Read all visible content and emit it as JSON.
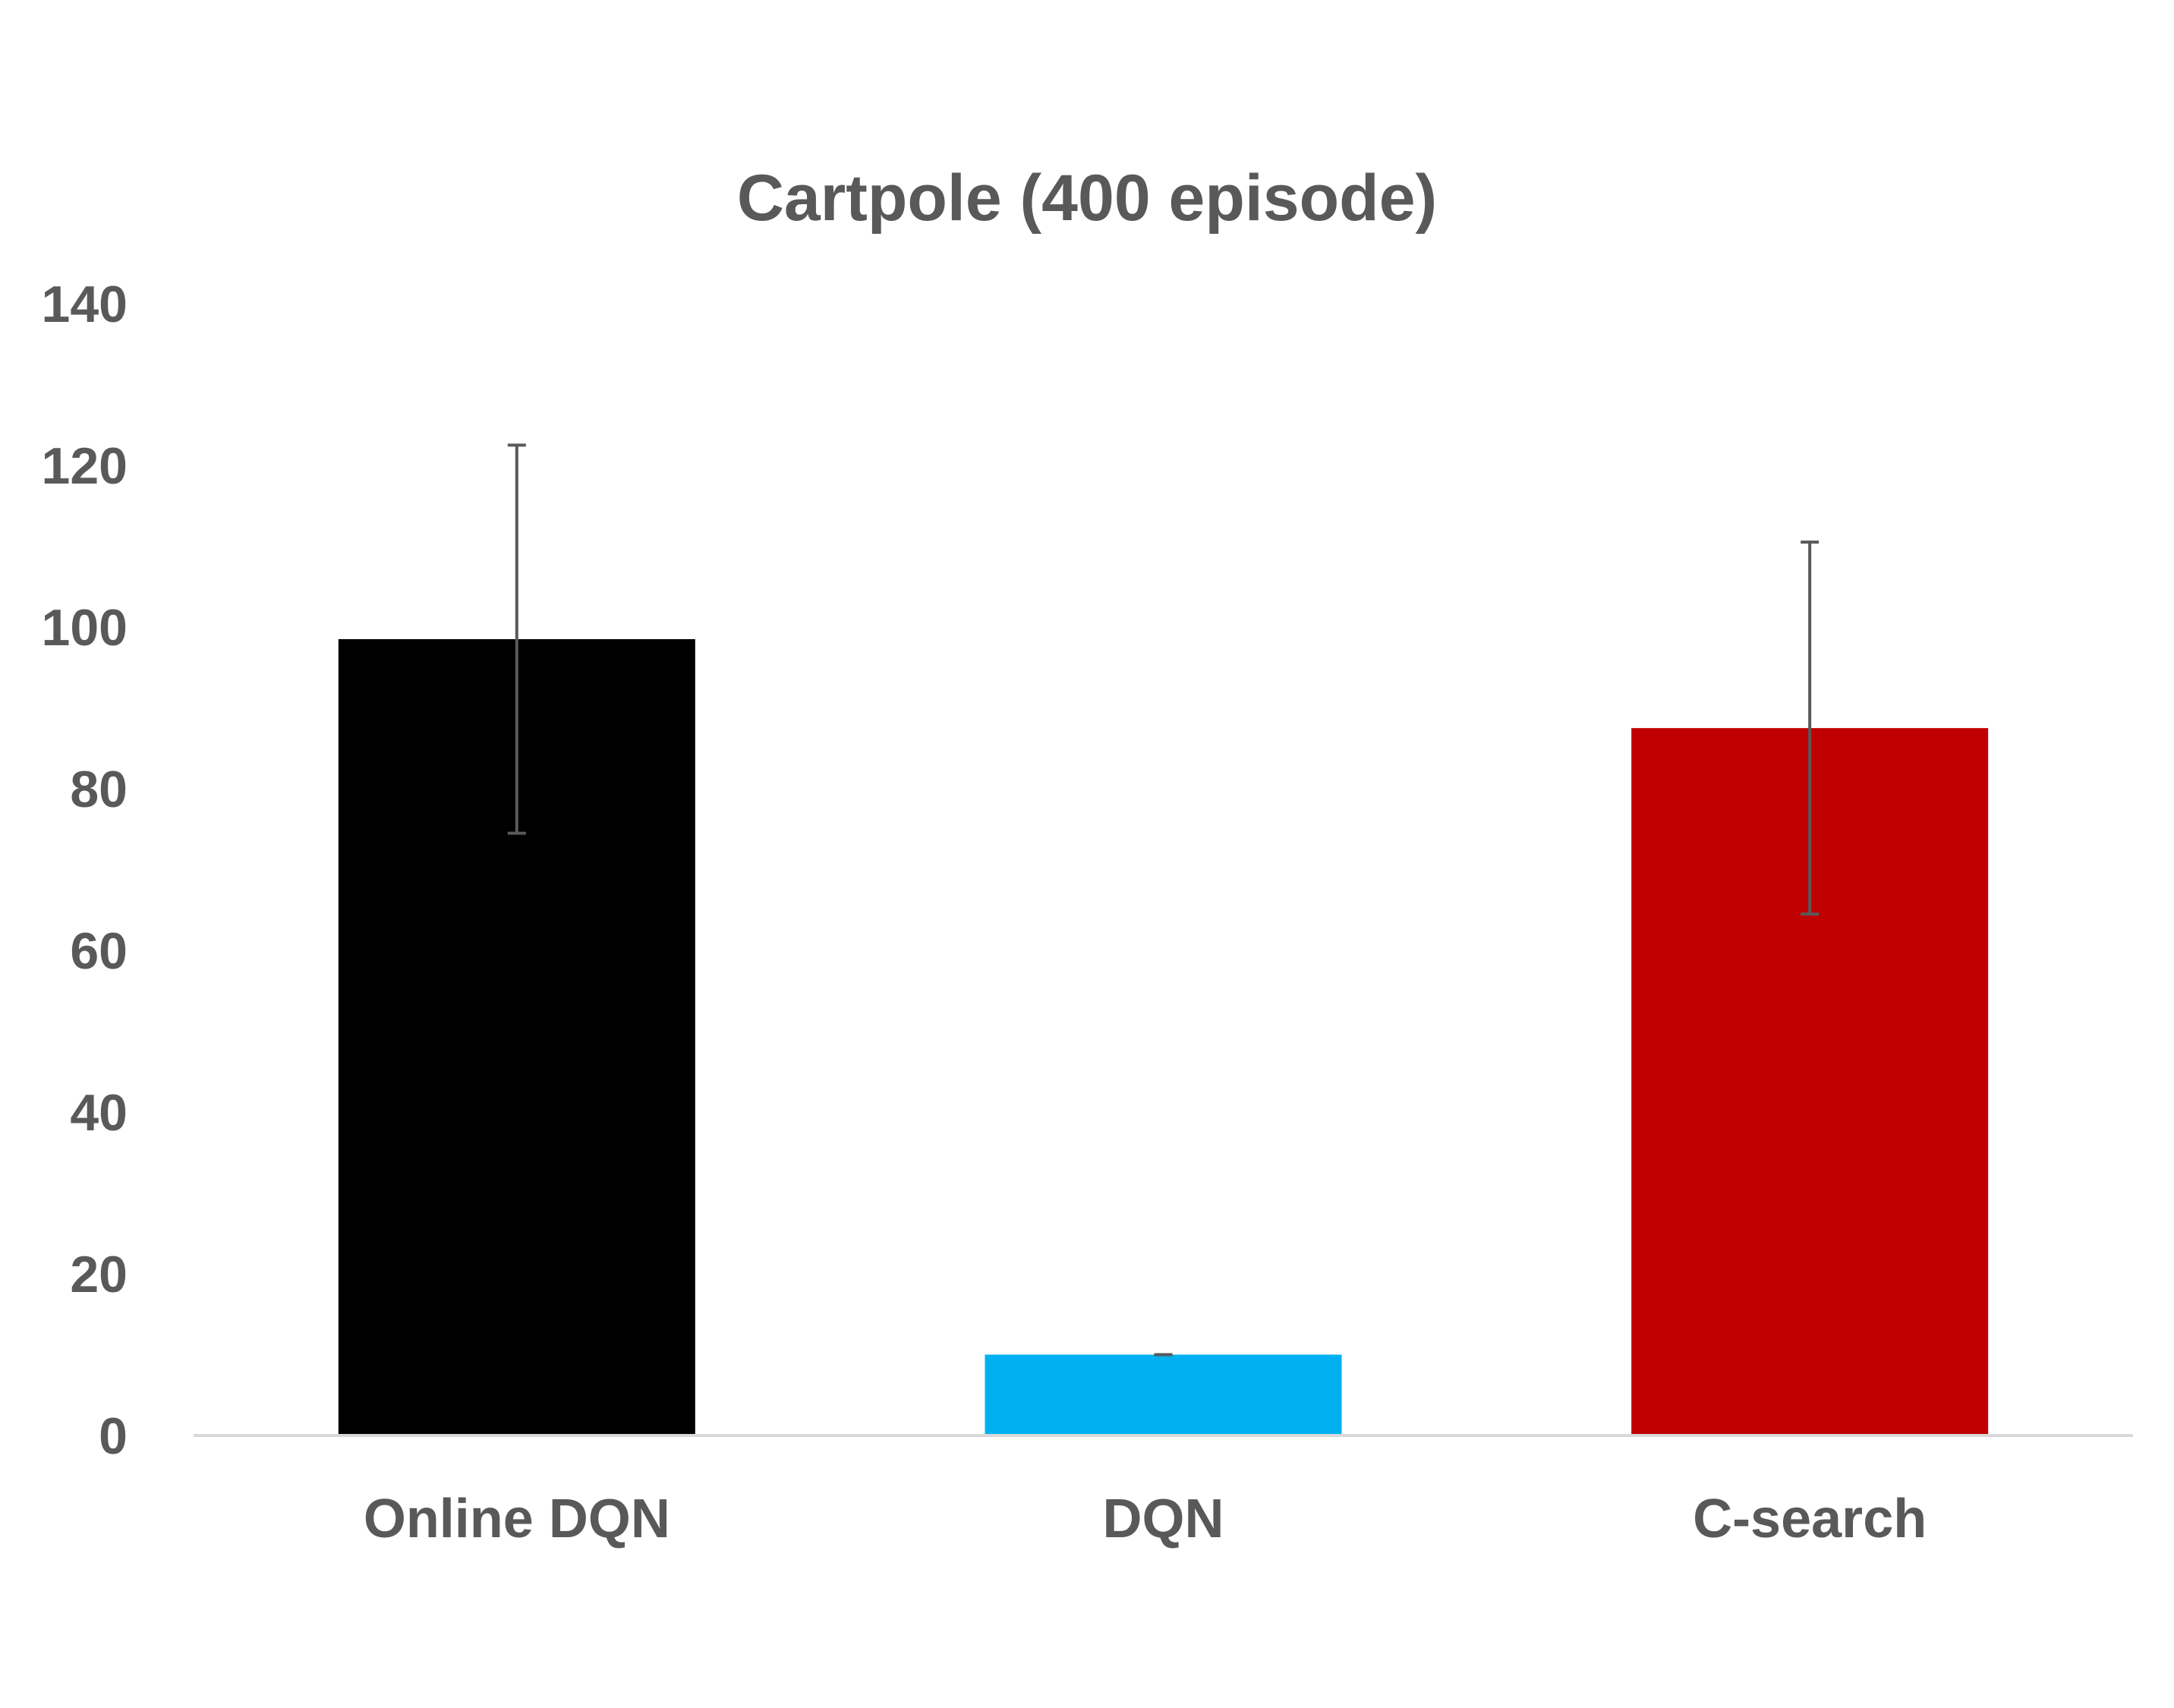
{
  "chart_data": {
    "type": "bar",
    "title": "Cartpole (400 episode)",
    "xlabel": "",
    "ylabel": "",
    "ylim": [
      0,
      140
    ],
    "y_ticks": [
      "0",
      "20",
      "40",
      "60",
      "80",
      "100",
      "120",
      "140"
    ],
    "categories": [
      "Online DQN",
      "DQN",
      "C-search"
    ],
    "values": [
      98.5,
      10,
      87.5
    ],
    "error": [
      24,
      0,
      23
    ],
    "colors": [
      "#000000",
      "#00b0f0",
      "#c00000"
    ],
    "grid": false,
    "legend": "none"
  }
}
